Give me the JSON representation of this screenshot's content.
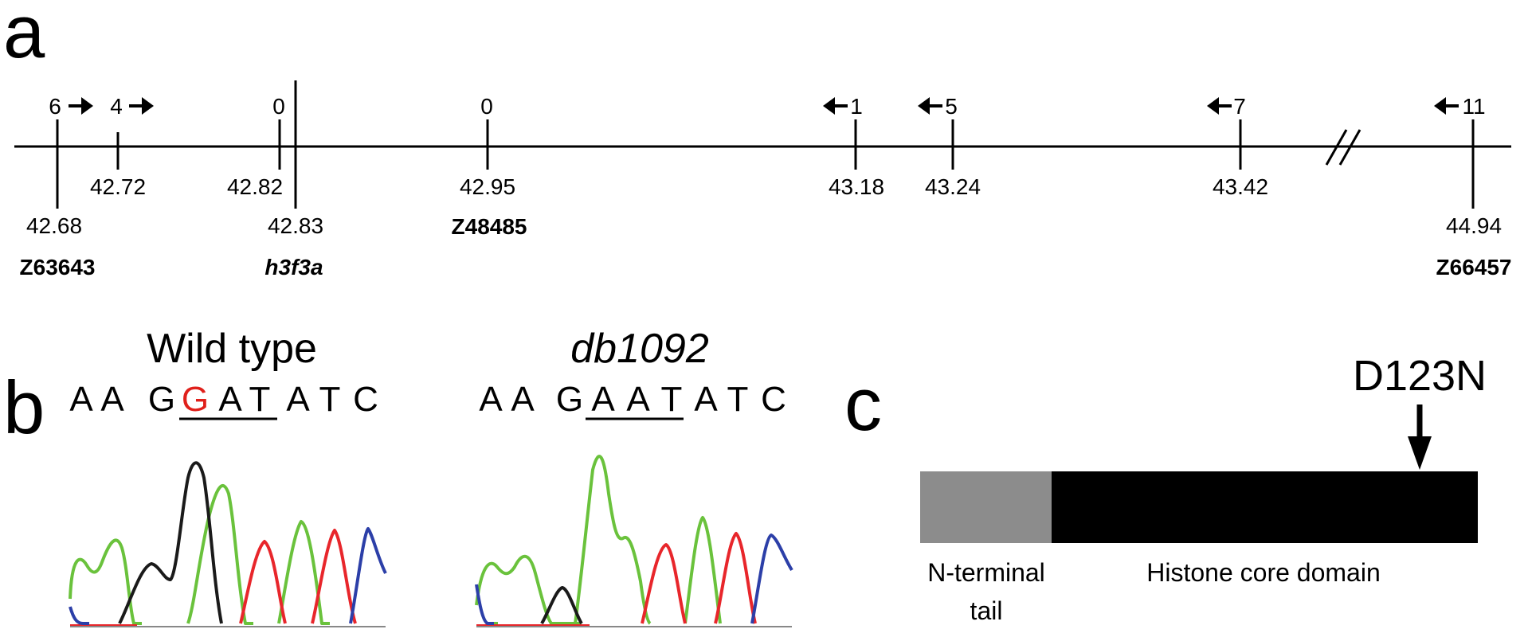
{
  "panels": {
    "a": {
      "letter": "a",
      "loci": [
        {
          "pos": "42.68",
          "count": "6",
          "arrow": "right",
          "marker": "Z63643",
          "italic": false
        },
        {
          "pos": "42.72",
          "count": "4",
          "arrow": "right",
          "marker": "",
          "italic": false
        },
        {
          "pos": "42.82",
          "count": "0",
          "arrow": "",
          "marker": "",
          "italic": false
        },
        {
          "pos": "42.83",
          "count": "",
          "arrow": "",
          "marker": "h3f3a",
          "italic": true
        },
        {
          "pos": "42.95",
          "count": "0",
          "arrow": "",
          "marker": "Z48485",
          "italic": false
        },
        {
          "pos": "43.18",
          "count": "1",
          "arrow": "left",
          "marker": "",
          "italic": false
        },
        {
          "pos": "43.24",
          "count": "5",
          "arrow": "left",
          "marker": "",
          "italic": false
        },
        {
          "pos": "43.42",
          "count": "7",
          "arrow": "left",
          "marker": "",
          "italic": false
        },
        {
          "pos": "44.94",
          "count": "11",
          "arrow": "left",
          "marker": "Z66457",
          "italic": false
        }
      ]
    },
    "b": {
      "letter": "b",
      "wild_type": {
        "title": "Wild type",
        "sequence": [
          "A",
          "A",
          "G",
          "G",
          "A",
          "T",
          "A",
          "T",
          "C"
        ],
        "highlight_index": 3,
        "highlight_color": "#e0201b"
      },
      "mutant": {
        "title": "db1092",
        "sequence": [
          "A",
          "A",
          "G",
          "A",
          "A",
          "T",
          "A",
          "T",
          "C"
        ]
      },
      "trace_colors": {
        "A": "#6ac23c",
        "G": "#1a1a1a",
        "T": "#e8262b",
        "C": "#2c3fa8"
      }
    },
    "c": {
      "letter": "c",
      "mutation": "D123N",
      "domains": [
        {
          "label": "N-terminal",
          "label2": "tail",
          "color": "#8c8c8c"
        },
        {
          "label": "Histone core domain",
          "label2": "",
          "color": "#000000"
        }
      ]
    }
  }
}
